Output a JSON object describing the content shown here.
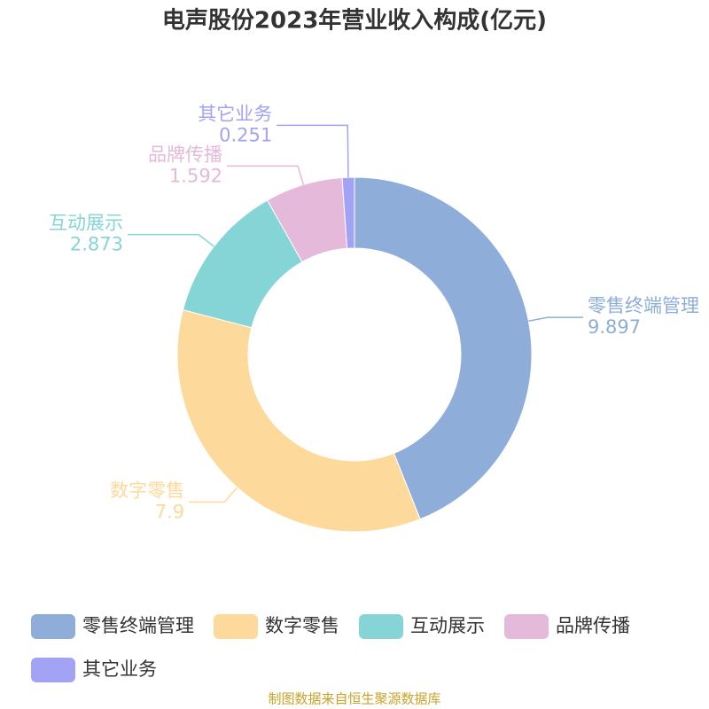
{
  "chart_data": {
    "type": "donut",
    "title": "电声股份2023年营业收入构成(亿元)",
    "categories": [
      "零售终端管理",
      "数字零售",
      "互动展示",
      "品牌传播",
      "其它业务"
    ],
    "values": [
      9.897,
      7.9,
      2.873,
      1.592,
      0.251
    ],
    "colors": [
      "#8eaed9",
      "#fdd99b",
      "#86d5d6",
      "#e5b9d9",
      "#a3a3f5"
    ],
    "legend": "bottom",
    "source": "制图数据来自恒生聚源数据库"
  }
}
